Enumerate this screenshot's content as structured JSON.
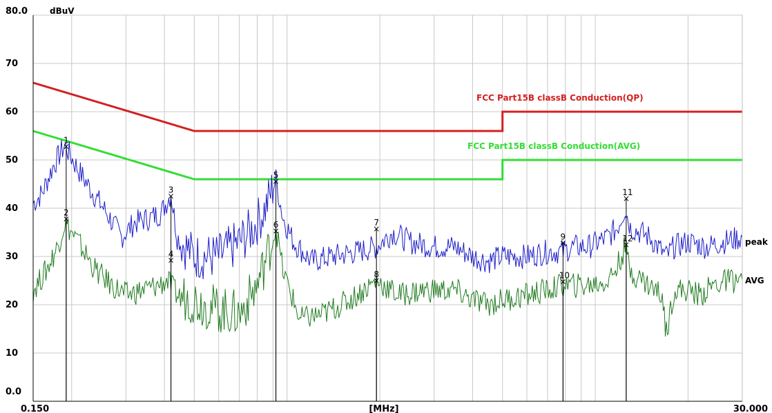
{
  "chart_data": {
    "type": "line",
    "title": "",
    "ylabel": "dBuV",
    "xlabel": "[MHz]",
    "x_scale": "log",
    "xlim": [
      0.15,
      30.0
    ],
    "ylim": [
      0,
      80
    ],
    "grid": true,
    "y_ticks": [
      {
        "value": 0,
        "label": "0.0"
      },
      {
        "value": 10,
        "label": "10"
      },
      {
        "value": 20,
        "label": "20"
      },
      {
        "value": 30,
        "label": "30"
      },
      {
        "value": 40,
        "label": "40"
      },
      {
        "value": 50,
        "label": "50"
      },
      {
        "value": 60,
        "label": "60"
      },
      {
        "value": 70,
        "label": "70"
      },
      {
        "value": 80,
        "label": "80.0"
      }
    ],
    "x_tick_labels": {
      "left": "0.150",
      "right": "30.000"
    },
    "limits": [
      {
        "label": "FCC  Part15B  classB  Conduction(QP)",
        "color": "#d42020",
        "points": [
          [
            0.15,
            66
          ],
          [
            0.5,
            56
          ],
          [
            5,
            56
          ],
          [
            5,
            60
          ],
          [
            30,
            60
          ]
        ]
      },
      {
        "label": "FCC  Part15B  classB  Conduction(AVG)",
        "color": "#33dd33",
        "points": [
          [
            0.15,
            56
          ],
          [
            0.5,
            46
          ],
          [
            5,
            46
          ],
          [
            5,
            50
          ],
          [
            30,
            50
          ]
        ]
      }
    ],
    "series": [
      {
        "name": "peak",
        "color": "#1c1cc8",
        "points": [
          [
            0.15,
            41
          ],
          [
            0.16,
            43
          ],
          [
            0.175,
            49
          ],
          [
            0.19,
            53
          ],
          [
            0.21,
            48
          ],
          [
            0.23,
            44
          ],
          [
            0.26,
            39
          ],
          [
            0.29,
            34
          ],
          [
            0.32,
            37
          ],
          [
            0.36,
            38
          ],
          [
            0.39,
            39
          ],
          [
            0.42,
            43
          ],
          [
            0.44,
            34
          ],
          [
            0.5,
            30
          ],
          [
            0.6,
            30
          ],
          [
            0.7,
            33
          ],
          [
            0.78,
            36
          ],
          [
            0.85,
            40
          ],
          [
            0.92,
            46
          ],
          [
            0.97,
            38
          ],
          [
            1.05,
            33
          ],
          [
            1.2,
            29
          ],
          [
            1.4,
            30
          ],
          [
            1.7,
            31
          ],
          [
            1.95,
            32
          ],
          [
            2.2,
            35
          ],
          [
            2.5,
            33
          ],
          [
            3.0,
            32
          ],
          [
            3.5,
            32
          ],
          [
            4.0,
            30
          ],
          [
            4.5,
            29
          ],
          [
            5.0,
            30
          ],
          [
            6.0,
            30
          ],
          [
            7.0,
            31
          ],
          [
            7.8,
            31
          ],
          [
            8.5,
            32
          ],
          [
            9.5,
            32
          ],
          [
            11.0,
            34
          ],
          [
            11.8,
            36
          ],
          [
            12.5,
            40
          ],
          [
            13.0,
            36
          ],
          [
            15.0,
            34
          ],
          [
            17.0,
            30
          ],
          [
            18.0,
            32
          ],
          [
            20.0,
            33
          ],
          [
            23.0,
            32
          ],
          [
            26.0,
            33
          ],
          [
            30.0,
            34
          ]
        ]
      },
      {
        "name": "AVG",
        "color": "#1f7a1f",
        "points": [
          [
            0.15,
            23
          ],
          [
            0.165,
            27
          ],
          [
            0.18,
            32
          ],
          [
            0.19,
            37
          ],
          [
            0.21,
            33
          ],
          [
            0.24,
            27
          ],
          [
            0.27,
            24
          ],
          [
            0.3,
            22
          ],
          [
            0.34,
            23
          ],
          [
            0.38,
            24
          ],
          [
            0.41,
            25
          ],
          [
            0.44,
            22
          ],
          [
            0.5,
            21
          ],
          [
            0.6,
            19
          ],
          [
            0.7,
            18
          ],
          [
            0.8,
            24
          ],
          [
            0.88,
            32
          ],
          [
            0.92,
            36
          ],
          [
            0.97,
            27
          ],
          [
            1.1,
            17
          ],
          [
            1.3,
            18
          ],
          [
            1.6,
            21
          ],
          [
            1.95,
            25
          ],
          [
            2.3,
            22
          ],
          [
            2.8,
            23
          ],
          [
            3.5,
            23
          ],
          [
            4.0,
            21
          ],
          [
            4.5,
            20
          ],
          [
            5.0,
            21
          ],
          [
            6.0,
            22
          ],
          [
            7.0,
            23
          ],
          [
            7.8,
            24
          ],
          [
            8.5,
            24
          ],
          [
            9.5,
            24
          ],
          [
            11.0,
            25
          ],
          [
            11.8,
            28
          ],
          [
            12.5,
            32
          ],
          [
            13.0,
            27
          ],
          [
            15.0,
            24
          ],
          [
            16.5,
            22
          ],
          [
            17.0,
            14
          ],
          [
            18.0,
            23
          ],
          [
            20.0,
            23
          ],
          [
            22.0,
            22
          ],
          [
            24.0,
            24
          ],
          [
            27.0,
            25
          ],
          [
            30.0,
            25
          ]
        ]
      }
    ],
    "series_labels": [
      {
        "text": "peak",
        "x": 30.0,
        "y": 33,
        "color": "#000000"
      },
      {
        "text": "AVG",
        "x": 30.0,
        "y": 25,
        "color": "#00a000"
      }
    ],
    "markers": [
      {
        "label": "1",
        "x": 0.192,
        "y": 52.8
      },
      {
        "label": "2",
        "x": 0.192,
        "y": 37.8
      },
      {
        "label": "3",
        "x": 0.42,
        "y": 42.5
      },
      {
        "label": "4",
        "x": 0.42,
        "y": 29.2
      },
      {
        "label": "5",
        "x": 0.92,
        "y": 45.6
      },
      {
        "label": "6",
        "x": 0.92,
        "y": 35.3
      },
      {
        "label": "7",
        "x": 1.95,
        "y": 35.7
      },
      {
        "label": "8",
        "x": 1.95,
        "y": 25.0
      },
      {
        "label": "9",
        "x": 7.86,
        "y": 32.8
      },
      {
        "label": "10",
        "x": 7.86,
        "y": 24.8
      },
      {
        "label": "11",
        "x": 12.6,
        "y": 42.0
      },
      {
        "label": "12",
        "x": 12.6,
        "y": 32.4
      }
    ]
  }
}
